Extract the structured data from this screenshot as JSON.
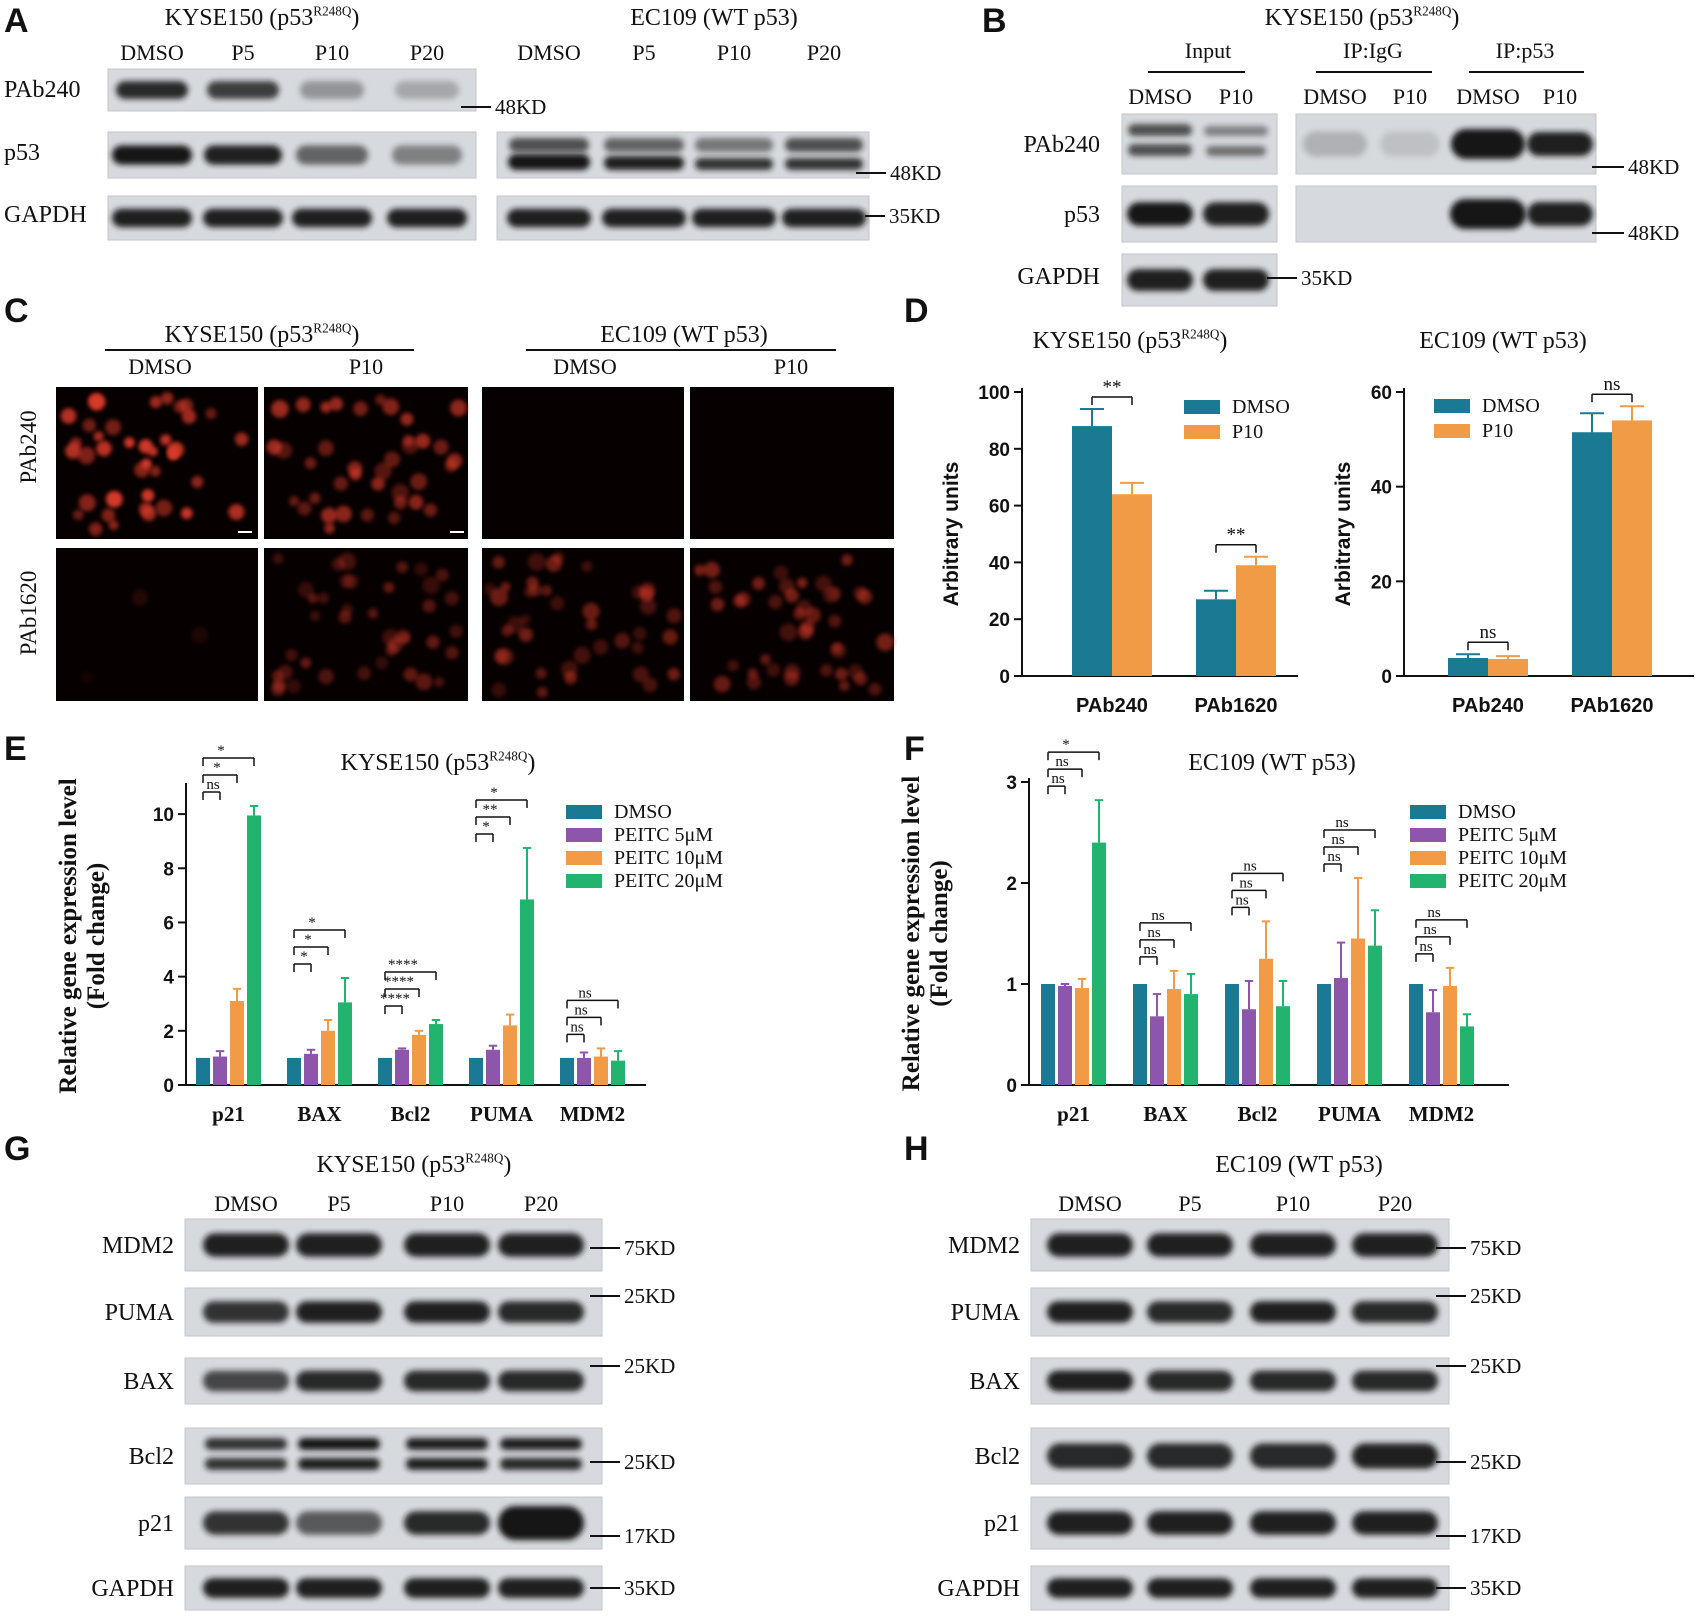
{
  "colors": {
    "teal": "#1a7a93",
    "orange": "#f29b46",
    "purple": "#8d56ab",
    "green": "#22b36f",
    "cell_red": "#d83a2a"
  },
  "panels": {
    "A": {
      "letter": "A",
      "left_title": "KYSE150 (p53",
      "left_sup": "R248Q",
      "left_title_end": ")",
      "right_title": "EC109 (WT p53)",
      "lanes": [
        "DMSO",
        "P5",
        "P10",
        "P20"
      ],
      "rows": [
        "PAb240",
        "p53",
        "GAPDH"
      ],
      "markers": [
        "48KD",
        "48KD",
        "35KD"
      ]
    },
    "B": {
      "letter": "B",
      "title": "KYSE150 (p53",
      "title_sup": "R248Q",
      "title_end": ")",
      "groups": [
        "Input",
        "IP:IgG",
        "IP:p53"
      ],
      "lanes": [
        "DMSO",
        "P10",
        "DMSO",
        "P10",
        "DMSO",
        "P10"
      ],
      "rows": [
        "PAb240",
        "p53",
        "GAPDH"
      ],
      "markers": [
        "48KD",
        "48KD",
        "35KD"
      ]
    },
    "C": {
      "letter": "C",
      "left_title": "KYSE150 (p53",
      "left_sup": "R248Q",
      "left_title_end": ")",
      "right_title": "EC109 (WT p53)",
      "cols": [
        "DMSO",
        "P10",
        "DMSO",
        "P10"
      ],
      "rows": [
        "PAb240",
        "PAb1620"
      ]
    },
    "D": {
      "letter": "D"
    },
    "E": {
      "letter": "E"
    },
    "F": {
      "letter": "F"
    },
    "G": {
      "letter": "G",
      "title": "KYSE150 (p53",
      "title_sup": "R248Q",
      "title_end": ")",
      "lanes": [
        "DMSO",
        "P5",
        "P10",
        "P20"
      ],
      "rows": [
        "MDM2",
        "PUMA",
        "BAX",
        "Bcl2",
        "p21",
        "GAPDH"
      ],
      "markers": [
        "75KD",
        "25KD",
        "25KD",
        "25KD",
        "17KD",
        "35KD"
      ]
    },
    "H": {
      "letter": "H",
      "title": "EC109 (WT p53)",
      "lanes": [
        "DMSO",
        "P5",
        "P10",
        "P20"
      ],
      "rows": [
        "MDM2",
        "PUMA",
        "BAX",
        "Bcl2",
        "p21",
        "GAPDH"
      ],
      "markers": [
        "75KD",
        "25KD",
        "25KD",
        "25KD",
        "17KD",
        "35KD"
      ]
    }
  },
  "chart_data": [
    {
      "id": "D-left",
      "type": "bar",
      "title": "KYSE150 (p53",
      "title_sup": "R248Q",
      "title_end": ")",
      "ylabel": "Arbitrary units",
      "ylim": [
        0,
        100
      ],
      "yticks": [
        0,
        20,
        40,
        60,
        80,
        100
      ],
      "categories": [
        "PAb240",
        "PAb1620"
      ],
      "series": [
        {
          "name": "DMSO",
          "color": "#1a7a93",
          "values": [
            88,
            27
          ],
          "errors": [
            6,
            3
          ]
        },
        {
          "name": "P10",
          "color": "#f29b46",
          "values": [
            64,
            39
          ],
          "errors": [
            4,
            3
          ]
        }
      ],
      "significance": [
        "**",
        "**"
      ],
      "legend": "top-right"
    },
    {
      "id": "D-right",
      "type": "bar",
      "title": "EC109 (WT p53)",
      "ylabel": "Arbitrary units",
      "ylim": [
        0,
        60
      ],
      "yticks": [
        0,
        20,
        40,
        60
      ],
      "categories": [
        "PAb240",
        "PAb1620"
      ],
      "series": [
        {
          "name": "DMSO",
          "color": "#1a7a93",
          "values": [
            3.8,
            51.5
          ],
          "errors": [
            0.8,
            4
          ]
        },
        {
          "name": "P10",
          "color": "#f29b46",
          "values": [
            3.6,
            54
          ],
          "errors": [
            0.6,
            3
          ]
        }
      ],
      "significance": [
        "ns",
        "ns"
      ],
      "legend": "top-left"
    },
    {
      "id": "E",
      "type": "bar",
      "title": "KYSE150 (p53",
      "title_sup": "R248Q",
      "title_end": ")",
      "ylabel": "Relative gene expression level",
      "ylabel2": "(Fold change)",
      "ylim": [
        0,
        11
      ],
      "yticks": [
        0,
        2,
        4,
        6,
        8,
        10
      ],
      "categories": [
        "p21",
        "BAX",
        "Bcl2",
        "PUMA",
        "MDM2"
      ],
      "series": [
        {
          "name": "DMSO",
          "color": "#1a7a93",
          "values": [
            1,
            1,
            1,
            1,
            1
          ],
          "errors": [
            0,
            0,
            0,
            0,
            0
          ]
        },
        {
          "name": "PEITC 5μM",
          "color": "#8d56ab",
          "values": [
            1.05,
            1.15,
            1.3,
            1.3,
            1.0
          ],
          "errors": [
            0.2,
            0.15,
            0.05,
            0.15,
            0.2
          ]
        },
        {
          "name": "PEITC 10μM",
          "color": "#f29b46",
          "values": [
            3.1,
            2.0,
            1.85,
            2.2,
            1.05
          ],
          "errors": [
            0.45,
            0.4,
            0.15,
            0.4,
            0.3
          ]
        },
        {
          "name": "PEITC 20μM",
          "color": "#22b36f",
          "values": [
            9.95,
            3.05,
            2.25,
            6.85,
            0.9
          ],
          "errors": [
            0.35,
            0.9,
            0.15,
            1.9,
            0.35
          ]
        }
      ],
      "significance": [
        [
          "ns",
          "*",
          "*"
        ],
        [
          "*",
          "*",
          "*"
        ],
        [
          "****",
          "****",
          "****"
        ],
        [
          "*",
          "**",
          "*"
        ],
        [
          "ns",
          "ns",
          "ns"
        ]
      ],
      "legend": "top-right"
    },
    {
      "id": "F",
      "type": "bar",
      "title": "EC109 (WT p53)",
      "ylabel": "Relative gene expression level",
      "ylabel2": "(Fold change)",
      "ylim": [
        0,
        3
      ],
      "yticks": [
        0,
        1,
        2,
        3
      ],
      "categories": [
        "p21",
        "BAX",
        "Bcl2",
        "PUMA",
        "MDM2"
      ],
      "series": [
        {
          "name": "DMSO",
          "color": "#1a7a93",
          "values": [
            1,
            1,
            1,
            1,
            1
          ],
          "errors": [
            0,
            0,
            0,
            0,
            0
          ]
        },
        {
          "name": "PEITC 5μM",
          "color": "#8d56ab",
          "values": [
            0.98,
            0.68,
            0.75,
            1.06,
            0.72
          ],
          "errors": [
            0.02,
            0.22,
            0.28,
            0.35,
            0.22
          ]
        },
        {
          "name": "PEITC 10μM",
          "color": "#f29b46",
          "values": [
            0.96,
            0.95,
            1.25,
            1.45,
            0.98
          ],
          "errors": [
            0.09,
            0.18,
            0.37,
            0.6,
            0.18
          ]
        },
        {
          "name": "PEITC 20μM",
          "color": "#22b36f",
          "values": [
            2.4,
            0.9,
            0.78,
            1.38,
            0.58
          ],
          "errors": [
            0.42,
            0.2,
            0.25,
            0.35,
            0.12
          ]
        }
      ],
      "significance": [
        [
          "ns",
          "ns",
          "*"
        ],
        [
          "ns",
          "ns",
          "ns"
        ],
        [
          "ns",
          "ns",
          "ns"
        ],
        [
          "ns",
          "ns",
          "ns"
        ],
        [
          "ns",
          "ns",
          "ns"
        ]
      ],
      "legend": "top-right"
    }
  ]
}
